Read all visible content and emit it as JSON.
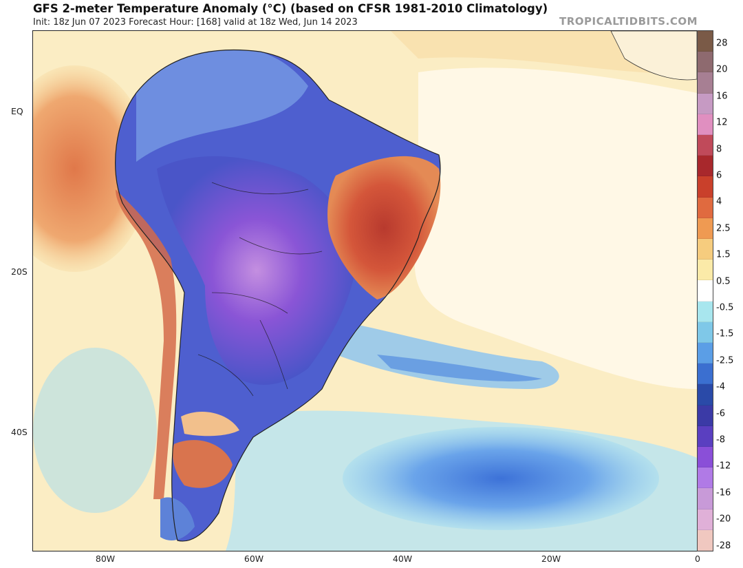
{
  "header": {
    "title": "GFS 2-meter Temperature Anomaly (°C) (based on CFSR 1981-2010 Climatology)",
    "subtitle": "Init: 18z Jun 07 2023   Forecast Hour: [168]   valid at 18z Wed, Jun 14 2023",
    "credit": "TROPICALTIDBITS.COM"
  },
  "map": {
    "lat_labels": [
      "EQ",
      "20S",
      "40S"
    ],
    "lon_labels": [
      "80W",
      "60W",
      "40W",
      "20W",
      "0"
    ]
  },
  "colorbar": {
    "labels": [
      "28",
      "20",
      "16",
      "12",
      "8",
      "6",
      "4",
      "2.5",
      "1.5",
      "0.5",
      "-0.5",
      "-1.5",
      "-2.5",
      "-4",
      "-6",
      "-8",
      "-12",
      "-16",
      "-20",
      "-28"
    ],
    "colors": [
      "#7a5a47",
      "#8e6a6f",
      "#a77f93",
      "#c69ac3",
      "#e08fc0",
      "#c04a5a",
      "#a8282c",
      "#c9402b",
      "#e06a3f",
      "#ef9a52",
      "#f6cc7e",
      "#fbeaa8",
      "#ffffff",
      "#a8e6ee",
      "#7fc8e8",
      "#5b9ee6",
      "#3b6fd0",
      "#2a4aa8",
      "#3b3aa6",
      "#5a3fc0",
      "#8a4fd8",
      "#b07ae6",
      "#c89ad8",
      "#e0b0d8",
      "#f0c8c0"
    ]
  }
}
